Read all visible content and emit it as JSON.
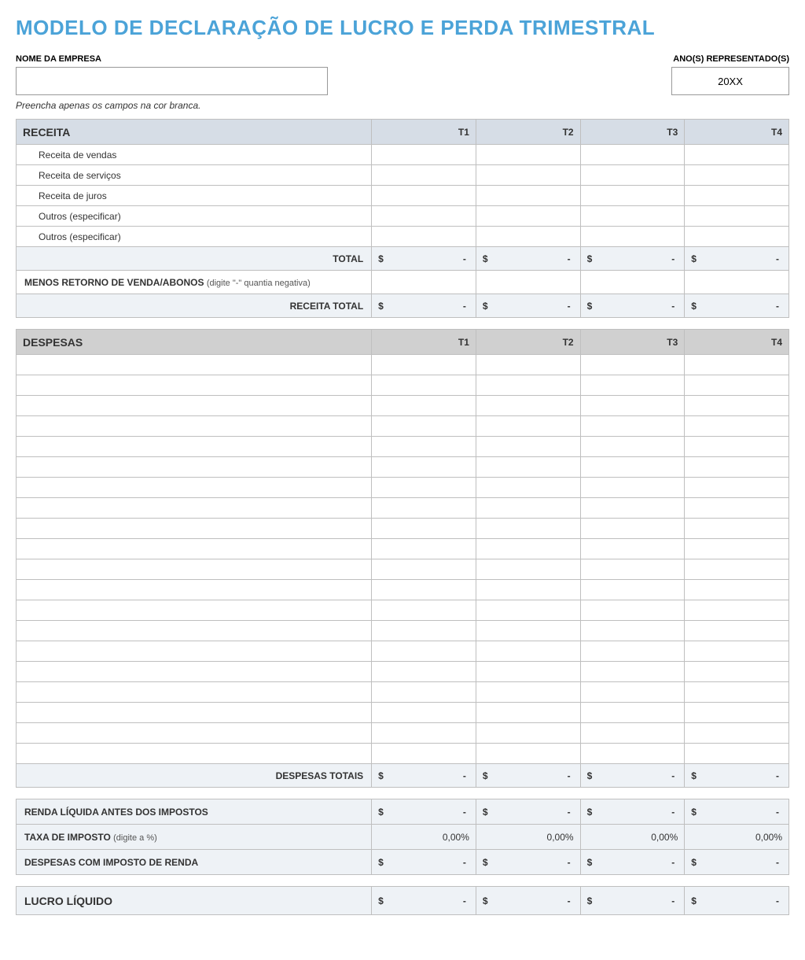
{
  "title": "MODELO DE DECLARAÇÃO DE LUCRO E PERDA TRIMESTRAL",
  "labels": {
    "company": "NOME DA EMPRESA",
    "year": "ANO(S) REPRESENTADO(S)",
    "instruction": "Preencha apenas os campos na cor branca."
  },
  "values": {
    "company": "",
    "year": "20XX"
  },
  "quarters": [
    "T1",
    "T2",
    "T3",
    "T4"
  ],
  "currency": "$",
  "dash": "-",
  "receita": {
    "heading": "RECEITA",
    "rows": [
      "Receita de vendas",
      "Receita de serviços",
      "Receita de juros",
      "Outros (especificar)",
      "Outros (especificar)"
    ],
    "total_label": "TOTAL",
    "menos_label": "MENOS RETORNO DE VENDA/ABONOS",
    "menos_sub": "(digite \"-\" quantia negativa)",
    "receita_total_label": "RECEITA TOTAL"
  },
  "despesas": {
    "heading": "DESPESAS",
    "blank_rows": 20,
    "total_label": "DESPESAS TOTAIS"
  },
  "summary": {
    "renda_antes": "RENDA LÍQUIDA ANTES DOS IMPOSTOS",
    "taxa_label": "TAXA DE IMPOSTO",
    "taxa_sub": "(digite a %)",
    "taxa_value": "0,00%",
    "despesas_imposto": "DESPESAS COM IMPOSTO DE RENDA",
    "lucro": "LUCRO LÍQUIDO"
  },
  "colors": {
    "title": "#4ba3d8",
    "header_blue": "#d6dde6",
    "header_grey": "#d0d0d0",
    "row_highlight": "#eef2f6",
    "border": "#bfbfbf"
  }
}
